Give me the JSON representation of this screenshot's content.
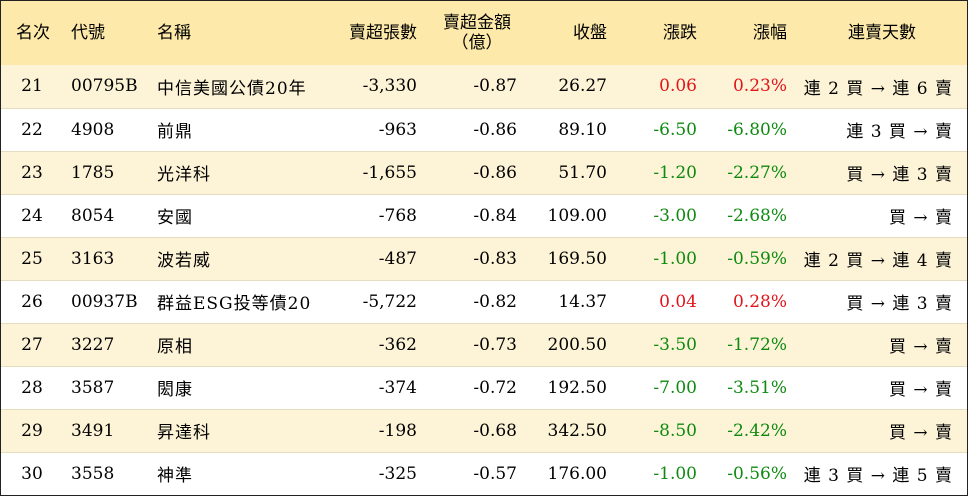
{
  "headers": {
    "rank": "名次",
    "code": "代號",
    "name": "名稱",
    "lots": "賣超張數",
    "amount_line1": "賣超金額",
    "amount_line2": "（億）",
    "close": "收盤",
    "change": "漲跌",
    "pct": "漲幅",
    "days": "連賣天數"
  },
  "colors": {
    "header_bg": "#fde9a9",
    "stripe_bg": "#fdf3d6",
    "up": "#e0141b",
    "down": "#0d8a0f"
  },
  "rows": [
    {
      "rank": "21",
      "code": "00795B",
      "name": "中信美國公債20年",
      "lots": "-3,330",
      "amount": "-0.87",
      "close": "26.27",
      "change": "0.06",
      "pct": "0.23%",
      "days": "連 2 買 → 連 6 賣",
      "dir": "up"
    },
    {
      "rank": "22",
      "code": "4908",
      "name": "前鼎",
      "lots": "-963",
      "amount": "-0.86",
      "close": "89.10",
      "change": "-6.50",
      "pct": "-6.80%",
      "days": "連 3 買 → 賣",
      "dir": "down"
    },
    {
      "rank": "23",
      "code": "1785",
      "name": "光洋科",
      "lots": "-1,655",
      "amount": "-0.86",
      "close": "51.70",
      "change": "-1.20",
      "pct": "-2.27%",
      "days": "買 → 連 3 賣",
      "dir": "down"
    },
    {
      "rank": "24",
      "code": "8054",
      "name": "安國",
      "lots": "-768",
      "amount": "-0.84",
      "close": "109.00",
      "change": "-3.00",
      "pct": "-2.68%",
      "days": "買 → 賣",
      "dir": "down"
    },
    {
      "rank": "25",
      "code": "3163",
      "name": "波若威",
      "lots": "-487",
      "amount": "-0.83",
      "close": "169.50",
      "change": "-1.00",
      "pct": "-0.59%",
      "days": "連 2 買 → 連 4 賣",
      "dir": "down"
    },
    {
      "rank": "26",
      "code": "00937B",
      "name": "群益ESG投等債20",
      "lots": "-5,722",
      "amount": "-0.82",
      "close": "14.37",
      "change": "0.04",
      "pct": "0.28%",
      "days": "買 → 連 3 賣",
      "dir": "up"
    },
    {
      "rank": "27",
      "code": "3227",
      "name": "原相",
      "lots": "-362",
      "amount": "-0.73",
      "close": "200.50",
      "change": "-3.50",
      "pct": "-1.72%",
      "days": "買 → 賣",
      "dir": "down"
    },
    {
      "rank": "28",
      "code": "3587",
      "name": "閎康",
      "lots": "-374",
      "amount": "-0.72",
      "close": "192.50",
      "change": "-7.00",
      "pct": "-3.51%",
      "days": "買 → 賣",
      "dir": "down"
    },
    {
      "rank": "29",
      "code": "3491",
      "name": "昇達科",
      "lots": "-198",
      "amount": "-0.68",
      "close": "342.50",
      "change": "-8.50",
      "pct": "-2.42%",
      "days": "買 → 賣",
      "dir": "down"
    },
    {
      "rank": "30",
      "code": "3558",
      "name": "神準",
      "lots": "-325",
      "amount": "-0.57",
      "close": "176.00",
      "change": "-1.00",
      "pct": "-0.56%",
      "days": "連 3 買 → 連 5 賣",
      "dir": "down"
    }
  ]
}
